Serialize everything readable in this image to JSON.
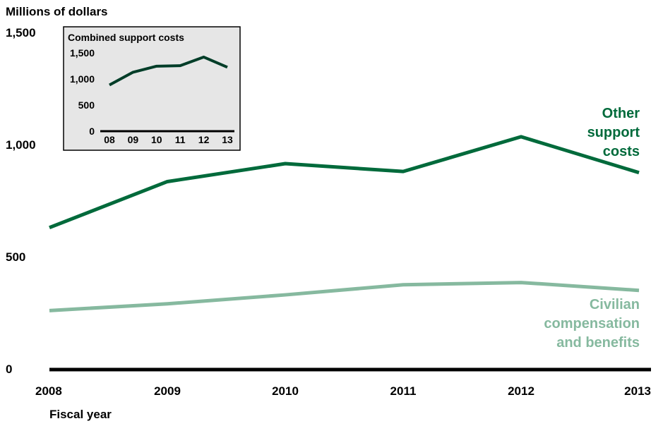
{
  "chart_data": [
    {
      "type": "line",
      "ylabel": "Millions of dollars",
      "xlabel": "Fiscal year",
      "x": [
        "2008",
        "2009",
        "2010",
        "2011",
        "2012",
        "2013"
      ],
      "ylim": [
        0,
        1500
      ],
      "yticks": [
        "0",
        "500",
        "1,000",
        "1,500"
      ],
      "series": [
        {
          "name": "Other support costs",
          "label_lines": [
            "Other",
            "support",
            "costs"
          ],
          "values": [
            630,
            835,
            915,
            880,
            1035,
            875
          ],
          "color": "#006a3b"
        },
        {
          "name": "Civilian compensation and benefits",
          "label_lines": [
            "Civilian",
            "compensation",
            "and benefits"
          ],
          "values": [
            260,
            290,
            330,
            375,
            385,
            350
          ],
          "color": "#86b99f"
        }
      ],
      "grid": false
    },
    {
      "type": "line",
      "title": "Combined support costs",
      "x": [
        "08",
        "09",
        "10",
        "11",
        "12",
        "13"
      ],
      "ylim": [
        0,
        1500
      ],
      "yticks": [
        "0",
        "500",
        "1,000",
        "1,500"
      ],
      "series": [
        {
          "values": [
            885,
            1130,
            1245,
            1255,
            1420,
            1225
          ],
          "color": "#003d28"
        }
      ],
      "background": "#e6e6e6"
    }
  ]
}
